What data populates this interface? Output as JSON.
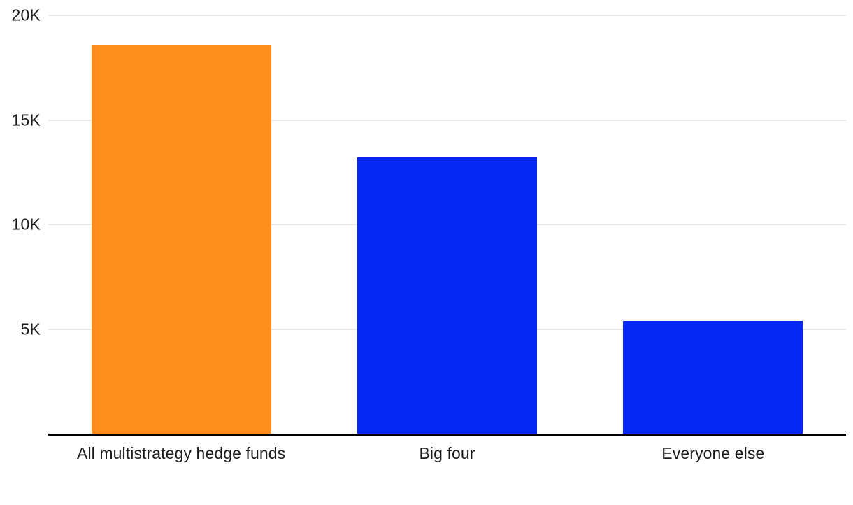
{
  "chart_data": {
    "type": "bar",
    "title": "",
    "xlabel": "",
    "ylabel": "",
    "categories": [
      "All multistrategy hedge funds",
      "Big four",
      "Everyone else"
    ],
    "values": [
      18600,
      13200,
      5400
    ],
    "bar_colors": [
      "#FF8E1E",
      "#0528F5",
      "#0528F5"
    ],
    "ylim": [
      0,
      20000
    ],
    "yticks": [
      {
        "label": "5K",
        "value": 5000
      },
      {
        "label": "10K",
        "value": 10000
      },
      {
        "label": "15K",
        "value": 15000
      },
      {
        "label": "20K",
        "value": 20000
      }
    ],
    "grid": "horizontal",
    "legend": "none",
    "colors": {
      "gridline": "#E9E9E9",
      "axis": "#000000",
      "tick_text": "#1B1B1B",
      "background": "#FFFFFF"
    }
  }
}
